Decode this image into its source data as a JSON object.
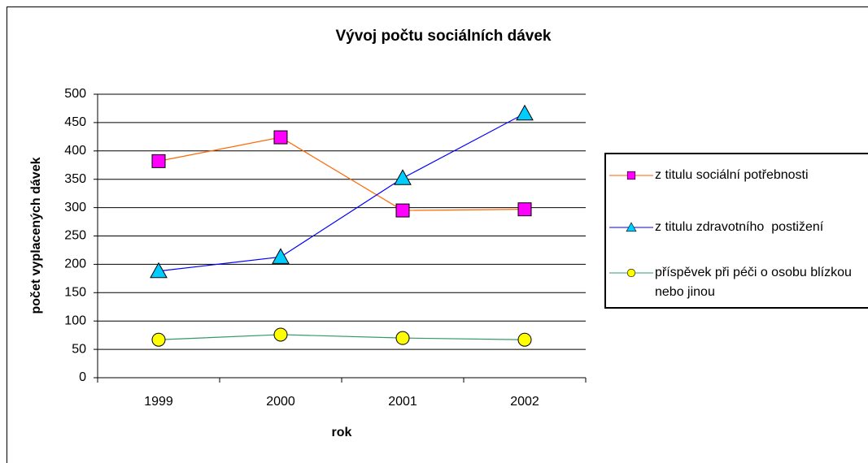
{
  "chart_data": {
    "type": "line",
    "title": "Vývoj počtu sociálních dávek",
    "x_label": "rok",
    "y_label": "počet vyplacených dávek",
    "categories": [
      "1999",
      "2000",
      "2001",
      "2002"
    ],
    "series": [
      {
        "name": "z titulu sociální potřebnosti",
        "color": "#ff6600",
        "marker": "square",
        "marker_color": "#ff00ff",
        "values": [
          382,
          424,
          295,
          297
        ]
      },
      {
        "name": "z titulu zdravotního  postižení",
        "color": "#0000ff",
        "marker": "triangle",
        "marker_color": "#00ccff",
        "values": [
          188,
          213,
          352,
          466
        ]
      },
      {
        "name": "příspěvek při péči o osobu blízkou nebo jinou",
        "color": "#339966",
        "marker": "circle",
        "marker_color": "#ffff00",
        "values": [
          67,
          76,
          70,
          67
        ]
      }
    ],
    "ylim": [
      0,
      500
    ],
    "yticks": [
      0,
      50,
      100,
      150,
      200,
      250,
      300,
      350,
      400,
      450,
      500
    ],
    "grid": true,
    "legend": "right"
  }
}
